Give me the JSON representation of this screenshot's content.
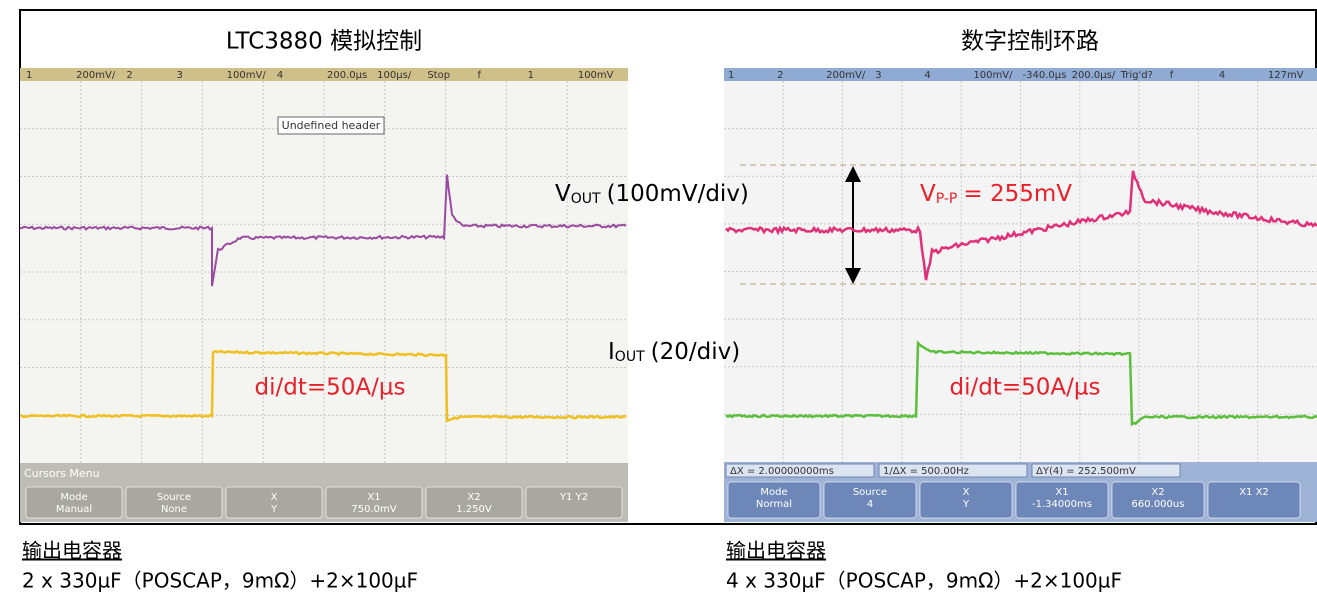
{
  "left": {
    "title": "LTC3880 模拟控制",
    "header": [
      "1",
      "200mV/",
      "2",
      "3",
      "100mV/",
      "4",
      "200.0µs",
      "100µs/",
      "Stop",
      "f",
      "1",
      "100mV"
    ],
    "label": "Undefined header",
    "annotation": "di/dt=50A/µs",
    "menu_title": "Cursors Menu",
    "buttons": [
      {
        "label": "Mode",
        "value": "Manual"
      },
      {
        "label": "Source",
        "value": "None"
      },
      {
        "label": "X",
        "value": "Y"
      },
      {
        "label": "X1",
        "value": "750.0mV"
      },
      {
        "label": "X2",
        "value": "1.250V"
      },
      {
        "label": "Y1 Y2",
        "value": ""
      }
    ]
  },
  "right": {
    "title": "数字控制环路",
    "header": [
      "1",
      "2",
      "200mV/",
      "3",
      "4",
      "100mV/",
      "-340.0µs",
      "200.0µs/",
      "Trig'd?",
      "f",
      "4",
      "127mV"
    ],
    "vout": {
      "symbol": "V",
      "subscript": "OUT",
      "text": "(100mV/div)"
    },
    "vpp": {
      "symbol": "V",
      "subscript": "P-P",
      "text": "= 255mV"
    },
    "iout": {
      "symbol": "I",
      "subscript": "OUT",
      "text": "(20/div)"
    },
    "annotation": "di/dt=50A/µs",
    "readouts": [
      "ΔX = 2.00000000ms",
      "1/ΔX = 500.00Hz",
      "ΔY(4) = 252.500mV"
    ],
    "buttons": [
      {
        "label": "Mode",
        "value": "Normal"
      },
      {
        "label": "Source",
        "value": "4"
      },
      {
        "label": "X",
        "value": "Y"
      },
      {
        "label": "X1",
        "value": "-1.34000ms"
      },
      {
        "label": "X2",
        "value": "660.000us"
      },
      {
        "label": "X1 X2",
        "value": ""
      }
    ]
  },
  "captions": [
    {
      "heading": "输出电容器",
      "text": "2 x 330µF（POSCAP，9mΩ）+2×100µF"
    },
    {
      "heading": "输出电容器",
      "text": "4 x 330µF（POSCAP，9mΩ）+2×100µF"
    }
  ]
}
